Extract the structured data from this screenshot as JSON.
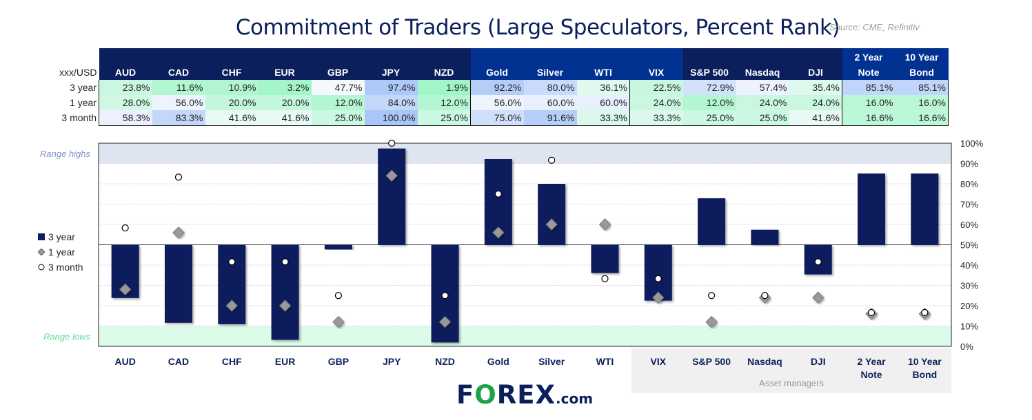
{
  "title": "Commitment of Traders (Large Speculators, Percent Rank)",
  "source": "Source: CME, Refinitiv",
  "table": {
    "corner": "xxx/USD",
    "headers": [
      "AUD",
      "CAD",
      "CHF",
      "EUR",
      "GBP",
      "JPY",
      "NZD",
      "Gold",
      "Silver",
      "WTI",
      "VIX",
      "S&P 500",
      "Nasdaq",
      "DJI",
      "2 Year Note",
      "10 Year Bond"
    ],
    "header_lines": [
      [
        "AUD"
      ],
      [
        "CAD"
      ],
      [
        "CHF"
      ],
      [
        "EUR"
      ],
      [
        "GBP"
      ],
      [
        "JPY"
      ],
      [
        "NZD"
      ],
      [
        "Gold"
      ],
      [
        "Silver"
      ],
      [
        "WTI"
      ],
      [
        "VIX"
      ],
      [
        "S&P 500"
      ],
      [
        "Nasdaq"
      ],
      [
        "DJI"
      ],
      [
        "2 Year",
        "Note"
      ],
      [
        "10 Year",
        "Bond"
      ]
    ],
    "rows": [
      {
        "label": "3 year",
        "values": [
          "23.8%",
          "11.6%",
          "10.9%",
          "3.2%",
          "47.7%",
          "97.4%",
          "1.9%",
          "92.2%",
          "80.0%",
          "36.1%",
          "22.5%",
          "72.9%",
          "57.4%",
          "35.4%",
          "85.1%",
          "85.1%"
        ]
      },
      {
        "label": "1 year",
        "values": [
          "28.0%",
          "56.0%",
          "20.0%",
          "20.0%",
          "12.0%",
          "84.0%",
          "12.0%",
          "56.0%",
          "60.0%",
          "60.0%",
          "24.0%",
          "12.0%",
          "24.0%",
          "24.0%",
          "16.0%",
          "16.0%"
        ]
      },
      {
        "label": "3 month",
        "values": [
          "58.3%",
          "83.3%",
          "41.6%",
          "41.6%",
          "25.0%",
          "100.0%",
          "25.0%",
          "75.0%",
          "91.6%",
          "33.3%",
          "33.3%",
          "25.0%",
          "25.0%",
          "41.6%",
          "16.6%",
          "16.6%"
        ]
      }
    ]
  },
  "chart_data": {
    "type": "bar",
    "categories": [
      "AUD",
      "CAD",
      "CHF",
      "EUR",
      "GBP",
      "JPY",
      "NZD",
      "Gold",
      "Silver",
      "WTI",
      "VIX",
      "S&P 500",
      "Nasdaq",
      "DJI",
      "2 Year Note",
      "10 Year Bond"
    ],
    "category_lines": [
      [
        "AUD"
      ],
      [
        "CAD"
      ],
      [
        "CHF"
      ],
      [
        "EUR"
      ],
      [
        "GBP"
      ],
      [
        "JPY"
      ],
      [
        "NZD"
      ],
      [
        "Gold"
      ],
      [
        "Silver"
      ],
      [
        "WTI"
      ],
      [
        "VIX"
      ],
      [
        "S&P 500"
      ],
      [
        "Nasdaq"
      ],
      [
        "DJI"
      ],
      [
        "2 Year",
        "Note"
      ],
      [
        "10 Year",
        "Bond"
      ]
    ],
    "baseline": 50,
    "ylim": [
      0,
      100
    ],
    "yticks": [
      "0%",
      "10%",
      "20%",
      "30%",
      "40%",
      "50%",
      "60%",
      "70%",
      "80%",
      "90%",
      "100%"
    ],
    "series": [
      {
        "name": "3 year",
        "marker": "bar",
        "values": [
          23.8,
          11.6,
          10.9,
          3.2,
          47.7,
          97.4,
          1.9,
          92.2,
          80.0,
          36.1,
          22.5,
          72.9,
          57.4,
          35.4,
          85.1,
          85.1
        ]
      },
      {
        "name": "1 year",
        "marker": "diamond",
        "values": [
          28,
          56,
          20,
          20,
          12,
          84,
          12,
          56,
          60,
          60,
          24,
          12,
          24,
          24,
          16,
          16
        ]
      },
      {
        "name": "3 month",
        "marker": "circle",
        "values": [
          58.3,
          83.3,
          41.6,
          41.6,
          25,
          100,
          25,
          75,
          91.6,
          33.3,
          33.3,
          25,
          25,
          41.6,
          16.6,
          16.6
        ]
      }
    ],
    "bands": [
      {
        "label": "Range highs",
        "from": 90,
        "to": 100,
        "color": "#dfe5f0",
        "text_color": "#7f95c4"
      },
      {
        "label": "Range lows",
        "from": 0,
        "to": 10,
        "color": "#dcfbe8",
        "text_color": "#5fd99a"
      }
    ],
    "group_label": "Asset managers"
  },
  "colors": {
    "navy": "#0b1f5c",
    "blue": "#013292",
    "bar": "#0b1f5c"
  },
  "logo": {
    "text": "FOREX.com"
  }
}
